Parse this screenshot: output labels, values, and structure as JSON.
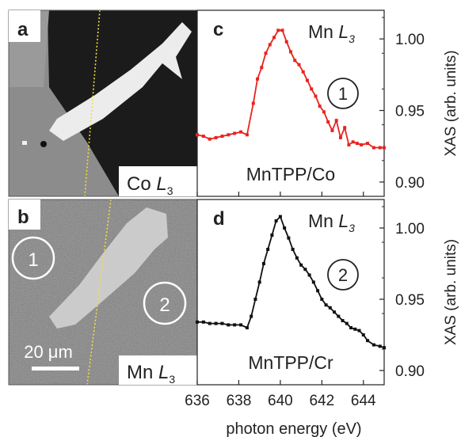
{
  "panels": {
    "a": {
      "letter": "a",
      "element_label": "Co",
      "edge_sub": "3"
    },
    "b": {
      "letter": "b",
      "element_label": "Mn",
      "edge_sub": "3",
      "scalebar": "20 μm",
      "circle1": "1",
      "circle2": "2"
    }
  },
  "chart_data": [
    {
      "type": "line",
      "panel": "c",
      "title": "",
      "annotation_element": "Mn",
      "annotation_sub": "3",
      "sample": "MnTPP/Co",
      "circle": "1",
      "color": "#e8231d",
      "xlabel": "photon energy (eV)",
      "ylabel": "XAS (arb. units)",
      "xlim": [
        636,
        645
      ],
      "ylim": [
        0.89,
        1.02
      ],
      "xticks": [
        "636",
        "638",
        "640",
        "642",
        "644"
      ],
      "yticks": [
        "0.90",
        "0.95",
        "1.00"
      ],
      "x": [
        636.0,
        636.3,
        636.6,
        636.9,
        637.2,
        637.5,
        637.8,
        638.1,
        638.4,
        638.7,
        638.9,
        639.1,
        639.3,
        639.5,
        639.7,
        639.9,
        640.1,
        640.3,
        640.5,
        640.7,
        640.9,
        641.1,
        641.3,
        641.5,
        641.7,
        641.9,
        642.1,
        642.3,
        642.5,
        642.7,
        642.9,
        643.1,
        643.3,
        643.5,
        643.7,
        643.9,
        644.2,
        644.5,
        644.8,
        645.0
      ],
      "y": [
        0.933,
        0.932,
        0.93,
        0.931,
        0.932,
        0.933,
        0.934,
        0.935,
        0.933,
        0.955,
        0.972,
        0.98,
        0.99,
        0.996,
        1.001,
        1.006,
        1.006,
        0.998,
        0.991,
        0.985,
        0.982,
        0.977,
        0.971,
        0.965,
        0.96,
        0.953,
        0.949,
        0.942,
        0.936,
        0.943,
        0.931,
        0.938,
        0.926,
        0.928,
        0.927,
        0.926,
        0.927,
        0.924,
        0.924,
        0.924
      ]
    },
    {
      "type": "line",
      "panel": "d",
      "title": "",
      "annotation_element": "Mn",
      "annotation_sub": "3",
      "sample": "MnTPP/Cr",
      "circle": "2",
      "color": "#111111",
      "xlabel": "photon energy (eV)",
      "ylabel": "XAS (arb. units)",
      "xlim": [
        636,
        645
      ],
      "ylim": [
        0.89,
        1.02
      ],
      "xticks": [
        "636",
        "638",
        "640",
        "642",
        "644"
      ],
      "yticks": [
        "0.90",
        "0.95",
        "1.00"
      ],
      "x": [
        636.0,
        636.3,
        636.6,
        636.9,
        637.2,
        637.5,
        637.8,
        638.1,
        638.4,
        638.6,
        638.8,
        639.0,
        639.2,
        639.4,
        639.6,
        639.8,
        640.0,
        640.2,
        640.4,
        640.6,
        640.8,
        641.0,
        641.2,
        641.4,
        641.6,
        641.8,
        642.0,
        642.2,
        642.4,
        642.6,
        642.8,
        643.0,
        643.2,
        643.4,
        643.6,
        643.8,
        644.0,
        644.2,
        644.5,
        644.8,
        645.0
      ],
      "y": [
        0.934,
        0.934,
        0.933,
        0.933,
        0.933,
        0.932,
        0.932,
        0.932,
        0.93,
        0.938,
        0.95,
        0.962,
        0.975,
        0.985,
        0.995,
        1.005,
        1.008,
        1.0,
        0.993,
        0.985,
        0.979,
        0.974,
        0.971,
        0.967,
        0.962,
        0.956,
        0.95,
        0.946,
        0.944,
        0.941,
        0.938,
        0.935,
        0.933,
        0.93,
        0.929,
        0.928,
        0.925,
        0.921,
        0.918,
        0.917,
        0.916
      ]
    }
  ]
}
